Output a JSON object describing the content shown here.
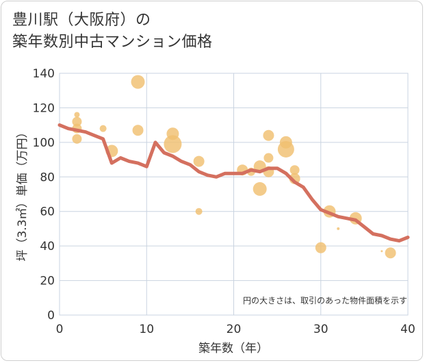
{
  "title": {
    "line1": "豊川駅（大阪府）の",
    "line2": "築年数別中古マンション価格"
  },
  "colors": {
    "line": "#d4705f",
    "bubble": "#f0c070",
    "grid": "#c9d3e0",
    "text": "#333333"
  },
  "chart_data": {
    "type": "scatter",
    "title": "豊川駅（大阪府）の 築年数別中古マンション価格",
    "xlabel": "築年数（年）",
    "ylabel": "坪（3.3㎡）単価（万円）",
    "xlim": [
      0,
      40
    ],
    "ylim": [
      0,
      140
    ],
    "x_ticks": [
      "0",
      "10",
      "20",
      "30",
      "40"
    ],
    "y_ticks": [
      "0",
      "20",
      "40",
      "60",
      "80",
      "100",
      "120",
      "140"
    ],
    "grid": true,
    "annotation": "円の大きさは、取引のあった物件面積を示す",
    "series": [
      {
        "type": "line",
        "points": [
          [
            0,
            110
          ],
          [
            1,
            108
          ],
          [
            2,
            107
          ],
          [
            3,
            106
          ],
          [
            4,
            104
          ],
          [
            5,
            102
          ],
          [
            6,
            88
          ],
          [
            7,
            91
          ],
          [
            8,
            89
          ],
          [
            9,
            88
          ],
          [
            10,
            86
          ],
          [
            11,
            100
          ],
          [
            12,
            94
          ],
          [
            13,
            92
          ],
          [
            14,
            89
          ],
          [
            15,
            87
          ],
          [
            16,
            83
          ],
          [
            17,
            81
          ],
          [
            18,
            80
          ],
          [
            19,
            82
          ],
          [
            20,
            82
          ],
          [
            21,
            82
          ],
          [
            22,
            84
          ],
          [
            23,
            83
          ],
          [
            24,
            85
          ],
          [
            25,
            85
          ],
          [
            26,
            82
          ],
          [
            27,
            77
          ],
          [
            28,
            74
          ],
          [
            29,
            67
          ],
          [
            30,
            61
          ],
          [
            31,
            59
          ],
          [
            32,
            57
          ],
          [
            33,
            56
          ],
          [
            34,
            55
          ],
          [
            35,
            51
          ],
          [
            36,
            47
          ],
          [
            37,
            46
          ],
          [
            38,
            44
          ],
          [
            39,
            43
          ],
          [
            40,
            45
          ]
        ]
      },
      {
        "type": "bubble",
        "points": [
          {
            "x": 2,
            "y": 116,
            "size": 4
          },
          {
            "x": 2,
            "y": 112,
            "size": 7
          },
          {
            "x": 2,
            "y": 108,
            "size": 7
          },
          {
            "x": 2,
            "y": 102,
            "size": 7
          },
          {
            "x": 5,
            "y": 108,
            "size": 5
          },
          {
            "x": 6,
            "y": 95,
            "size": 9
          },
          {
            "x": 9,
            "y": 135,
            "size": 10
          },
          {
            "x": 9,
            "y": 107,
            "size": 8
          },
          {
            "x": 13,
            "y": 105,
            "size": 9
          },
          {
            "x": 13,
            "y": 99,
            "size": 13
          },
          {
            "x": 16,
            "y": 89,
            "size": 8
          },
          {
            "x": 16,
            "y": 60,
            "size": 5
          },
          {
            "x": 21,
            "y": 84,
            "size": 8
          },
          {
            "x": 22,
            "y": 83,
            "size": 6
          },
          {
            "x": 23,
            "y": 86,
            "size": 9
          },
          {
            "x": 23,
            "y": 73,
            "size": 10
          },
          {
            "x": 24,
            "y": 104,
            "size": 8
          },
          {
            "x": 24,
            "y": 91,
            "size": 7
          },
          {
            "x": 24,
            "y": 83,
            "size": 8
          },
          {
            "x": 26,
            "y": 100,
            "size": 9
          },
          {
            "x": 26,
            "y": 96,
            "size": 12
          },
          {
            "x": 27,
            "y": 84,
            "size": 7
          },
          {
            "x": 27,
            "y": 79,
            "size": 8
          },
          {
            "x": 30,
            "y": 39,
            "size": 8
          },
          {
            "x": 31,
            "y": 60,
            "size": 9
          },
          {
            "x": 32,
            "y": 50,
            "size": 2
          },
          {
            "x": 34,
            "y": 56,
            "size": 9
          },
          {
            "x": 37,
            "y": 37,
            "size": 1.5
          },
          {
            "x": 38,
            "y": 36,
            "size": 8
          }
        ]
      }
    ]
  }
}
